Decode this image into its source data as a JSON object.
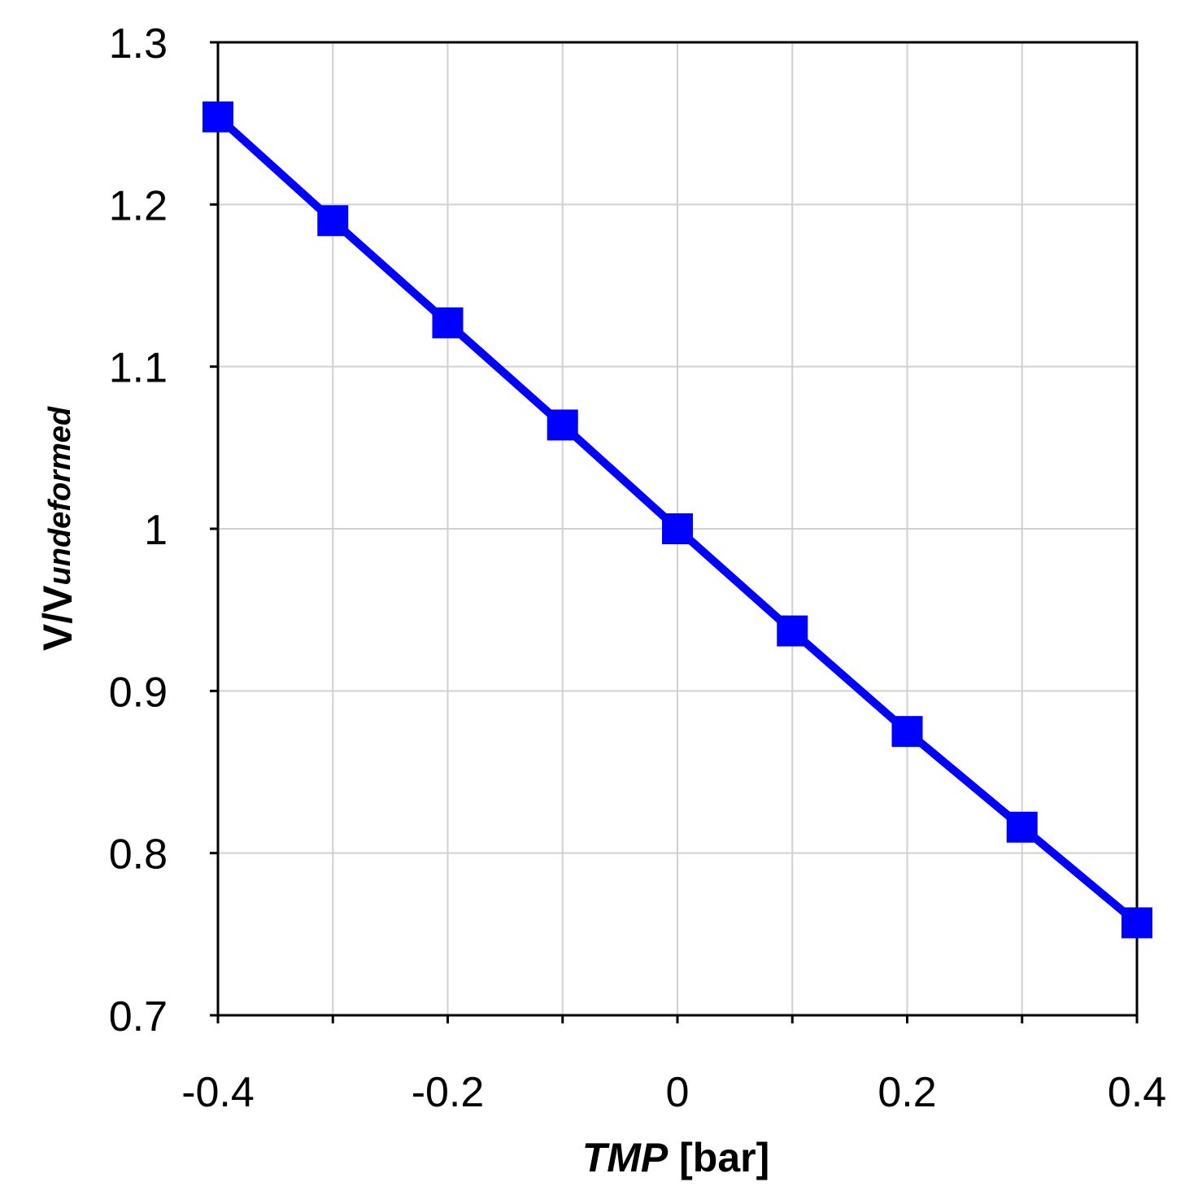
{
  "chart_data": {
    "type": "line",
    "title": "",
    "xlabel": {
      "main": "TMP",
      "unit": " [bar]"
    },
    "ylabel": {
      "main": "V/V",
      "subscript": "undeformed"
    },
    "xlim": [
      -0.4,
      0.4
    ],
    "ylim": [
      0.7,
      1.3
    ],
    "xticks": [
      -0.4,
      -0.2,
      0,
      0.2,
      0.4
    ],
    "xtick_labels": [
      "-0.4",
      "-0.2",
      "0",
      "0.2",
      "0.4"
    ],
    "xgrid": [
      -0.4,
      -0.3,
      -0.2,
      -0.1,
      0,
      0.1,
      0.2,
      0.3,
      0.4
    ],
    "yticks": [
      0.7,
      0.8,
      0.9,
      1.0,
      1.1,
      1.2,
      1.3
    ],
    "ytick_labels": [
      "0.7",
      "0.8",
      "0.9",
      "1",
      "1.1",
      "1.2",
      "1.3"
    ],
    "grid": true,
    "legend": "none",
    "series": [
      {
        "color": "#0000ff",
        "marker": "square",
        "x": [
          -0.4,
          -0.3,
          -0.2,
          -0.1,
          0,
          0.1,
          0.2,
          0.3,
          0.4
        ],
        "y": [
          1.254,
          1.19,
          1.127,
          1.064,
          1.0,
          0.937,
          0.875,
          0.816,
          0.757
        ]
      }
    ]
  }
}
